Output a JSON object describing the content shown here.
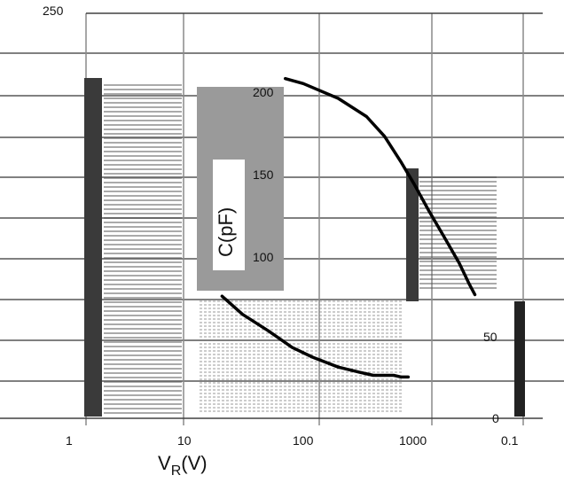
{
  "chart_data": {
    "type": "line",
    "xscale": "log",
    "xlim": [
      0.3,
      3000
    ],
    "ylim": [
      0,
      250
    ],
    "x_tick_labels": [
      "1",
      "10",
      "100",
      "1000",
      "0.1"
    ],
    "y_tick_labels": [
      "250",
      "200",
      "150",
      "100",
      "50",
      "0"
    ],
    "xlabel_main": "V",
    "xlabel_sub": "R",
    "xlabel_unit": "(V)",
    "ylabel": "C(pF)",
    "grid": true,
    "legend": "none",
    "series": [
      {
        "color": "#000000",
        "x": [
          70,
          100,
          200,
          350,
          500,
          700,
          900,
          1200,
          1600,
          2200,
          2700,
          3000
        ],
        "y": [
          205,
          202,
          193,
          182,
          170,
          154,
          141,
          125,
          110,
          93,
          80,
          74
        ]
      },
      {
        "color": "#000000",
        "x": [
          20,
          30,
          50,
          80,
          120,
          200,
          300,
          400,
          500,
          600,
          700,
          800
        ],
        "y": [
          73,
          62,
          52,
          42,
          36,
          30,
          27,
          25,
          25,
          25,
          24,
          24
        ]
      }
    ]
  }
}
